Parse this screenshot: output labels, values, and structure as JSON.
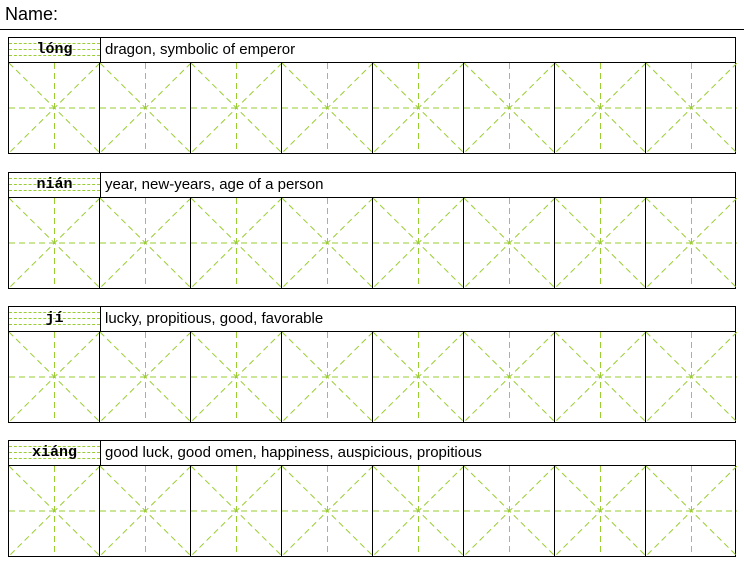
{
  "header": {
    "name_label": "Name:"
  },
  "entries": [
    {
      "pinyin": "lóng",
      "meaning": "dragon, symbolic of emperor"
    },
    {
      "pinyin": "nián",
      "meaning": "year, new-years, age of a person"
    },
    {
      "pinyin": "jí",
      "meaning": "lucky, propitious, good, favorable"
    },
    {
      "pinyin": "xiáng",
      "meaning": "good luck, good omen, happiness, auspicious, propitious"
    }
  ],
  "practice_boxes_per_row": 8,
  "colors": {
    "guide_line": "#9acd32",
    "border": "#000000"
  }
}
